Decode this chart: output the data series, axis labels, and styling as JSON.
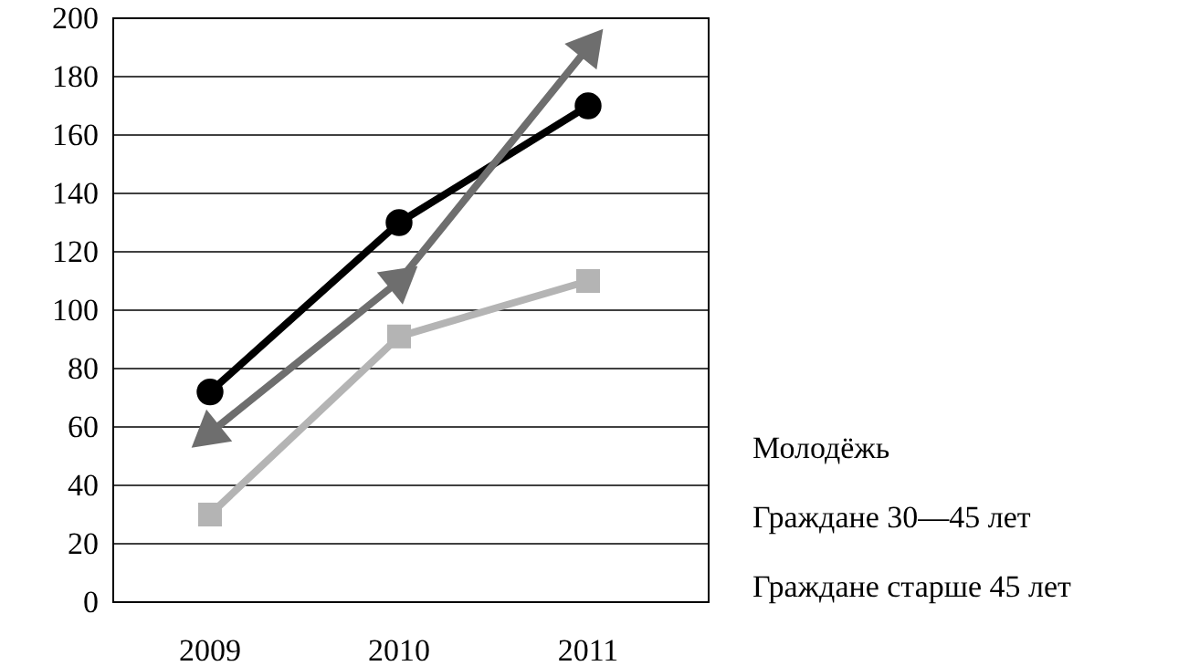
{
  "chart_data": {
    "type": "line",
    "categories": [
      "2009",
      "2010",
      "2011"
    ],
    "series": [
      {
        "color": "#000000",
        "marker": "circle",
        "values": [
          72,
          130,
          170
        ]
      },
      {
        "color": "#6e6e6e",
        "marker": "triangle",
        "values": [
          58,
          110,
          190
        ]
      },
      {
        "color": "#b4b4b4",
        "marker": "square",
        "values": [
          30,
          91,
          110
        ]
      }
    ],
    "ylim": [
      0,
      200
    ],
    "yticks": [
      0,
      20,
      40,
      60,
      80,
      100,
      120,
      140,
      160,
      180,
      200
    ],
    "grid": "y",
    "annotations": [
      "Молодёжь",
      "Граждане 30—45 лет",
      "Граждане старше 45 лет"
    ]
  }
}
